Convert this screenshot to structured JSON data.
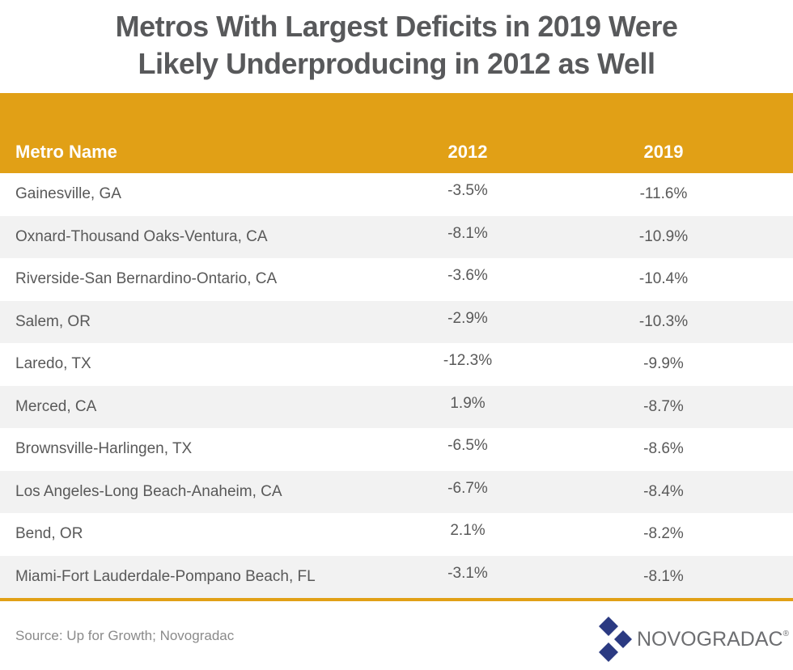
{
  "title": {
    "line1": "Metros With Largest Deficits in 2019 Were",
    "line2": "Likely Underproducing in 2012 as Well"
  },
  "colors": {
    "header_bg": "#E1A016",
    "header_text": "#FFFFFF",
    "row_alt_bg": "#F2F2F2",
    "logo_blue": "#2B3A82"
  },
  "table": {
    "columns": [
      "Metro Name",
      "2012",
      "2019"
    ],
    "rows": [
      {
        "metro": "Gainesville, GA",
        "y2012": "-3.5%",
        "y2019": "-11.6%"
      },
      {
        "metro": "Oxnard-Thousand Oaks-Ventura, CA",
        "y2012": "-8.1%",
        "y2019": "-10.9%"
      },
      {
        "metro": "Riverside-San Bernardino-Ontario, CA",
        "y2012": "-3.6%",
        "y2019": "-10.4%"
      },
      {
        "metro": "Salem, OR",
        "y2012": "-2.9%",
        "y2019": "-10.3%"
      },
      {
        "metro": "Laredo, TX",
        "y2012": "-12.3%",
        "y2019": "-9.9%"
      },
      {
        "metro": "Merced, CA",
        "y2012": "1.9%",
        "y2019": "-8.7%"
      },
      {
        "metro": "Brownsville-Harlingen, TX",
        "y2012": "-6.5%",
        "y2019": "-8.6%"
      },
      {
        "metro": "Los Angeles-Long Beach-Anaheim, CA",
        "y2012": "-6.7%",
        "y2019": "-8.4%"
      },
      {
        "metro": "Bend, OR",
        "y2012": "2.1%",
        "y2019": "-8.2%"
      },
      {
        "metro": "Miami-Fort Lauderdale-Pompano Beach, FL",
        "y2012": "-3.1%",
        "y2019": "-8.1%"
      }
    ]
  },
  "footer": {
    "source": "Source: Up for Growth; Novogradac",
    "logo_text": "NOVOGRADAC",
    "logo_mark": "®",
    "logo_icon": "diamond-logo-icon"
  }
}
